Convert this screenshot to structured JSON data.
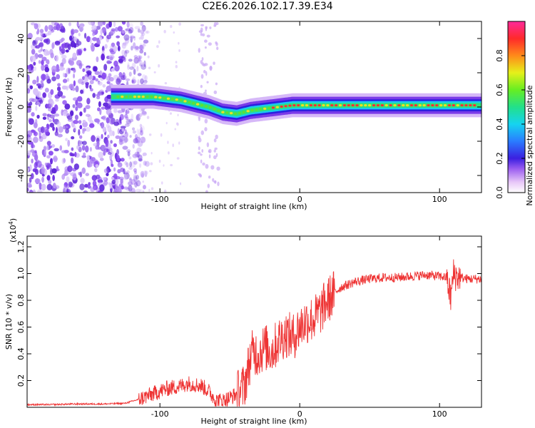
{
  "title": "C2E6.2026.102.17.39.E34",
  "chart_data": [
    {
      "type": "heatmap",
      "title": "C2E6.2026.102.17.39.E34",
      "xlabel": "Height of straight line (km)",
      "ylabel": "Frequency (Hz)",
      "xlim": [
        -195,
        130
      ],
      "ylim": [
        -50,
        50
      ],
      "xticks": [
        -100,
        0,
        100
      ],
      "yticks": [
        -40,
        -20,
        0,
        20,
        40
      ],
      "colorbar": {
        "label": "Normalized spectral amplitude",
        "range": [
          0,
          1
        ],
        "ticks": [
          "0.0",
          "0.2",
          "0.4",
          "0.6",
          "0.8"
        ]
      },
      "ridge": {
        "x": [
          -135,
          -125,
          -115,
          -105,
          -95,
          -85,
          -75,
          -65,
          -55,
          -45,
          -35,
          -25,
          -15,
          -5,
          5,
          20,
          40,
          60,
          80,
          100,
          130
        ],
        "y": [
          6,
          6,
          6,
          6,
          5,
          4,
          2,
          0,
          -3,
          -4,
          -2,
          -1,
          0,
          1,
          1,
          1,
          1,
          1,
          1,
          1,
          1
        ]
      },
      "noise_region_x": [
        -195,
        -115
      ]
    },
    {
      "type": "line",
      "xlabel": "Height of straight line (km)",
      "ylabel": "SNR (10 * v/v)",
      "y_multiplier": "(x10",
      "y_multiplier_exp": "4",
      "y_multiplier_close": ")",
      "xlim": [
        -195,
        130
      ],
      "ylim": [
        0,
        1.28
      ],
      "xticks": [
        -100,
        0,
        100
      ],
      "yticks": [
        "0.2",
        "0.4",
        "0.6",
        "0.8",
        "1.0",
        "1.2"
      ],
      "series": [
        {
          "name": "SNR",
          "color": "#ee3333",
          "x": [
            -195,
            -180,
            -160,
            -140,
            -125,
            -115,
            -105,
            -95,
            -85,
            -80,
            -75,
            -70,
            -65,
            -60,
            -55,
            -50,
            -45,
            -40,
            -38,
            -35,
            -33,
            -30,
            -25,
            -20,
            -15,
            -10,
            -5,
            0,
            5,
            10,
            15,
            20,
            25,
            30,
            40,
            50,
            60,
            70,
            80,
            90,
            100,
            105,
            108,
            110,
            112,
            115,
            120,
            130
          ],
          "y": [
            0.02,
            0.02,
            0.025,
            0.025,
            0.03,
            0.06,
            0.1,
            0.14,
            0.16,
            0.18,
            0.17,
            0.16,
            0.12,
            0.05,
            0.05,
            0.07,
            0.1,
            0.15,
            0.24,
            0.38,
            0.42,
            0.4,
            0.45,
            0.42,
            0.5,
            0.55,
            0.52,
            0.6,
            0.65,
            0.66,
            0.72,
            0.8,
            0.86,
            0.9,
            0.94,
            0.96,
            0.97,
            0.97,
            0.98,
            0.99,
            0.98,
            0.97,
            0.82,
            1.0,
            0.98,
            0.97,
            0.96,
            0.96
          ]
        }
      ]
    }
  ]
}
